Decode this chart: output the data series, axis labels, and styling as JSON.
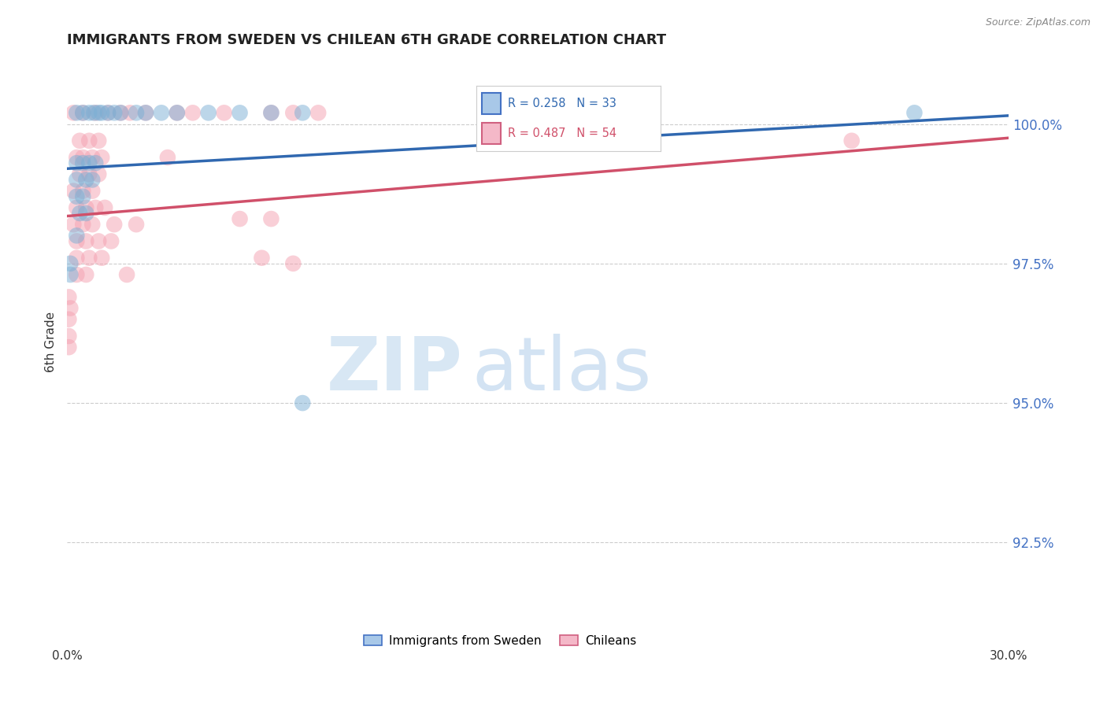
{
  "title": "IMMIGRANTS FROM SWEDEN VS CHILEAN 6TH GRADE CORRELATION CHART",
  "source": "Source: ZipAtlas.com",
  "ylabel": "6th Grade",
  "y_ticks": [
    92.5,
    95.0,
    97.5,
    100.0
  ],
  "y_tick_labels": [
    "92.5%",
    "95.0%",
    "97.5%",
    "100.0%"
  ],
  "xmin": 0.0,
  "xmax": 30.0,
  "ymin": 91.0,
  "ymax": 101.2,
  "legend_blue_label": "Immigrants from Sweden",
  "legend_pink_label": "Chileans",
  "blue_color": "#7bafd4",
  "pink_color": "#f4a0b0",
  "blue_line_color": "#3068b0",
  "pink_line_color": "#d0506a",
  "blue_scatter": [
    [
      0.3,
      100.2
    ],
    [
      0.5,
      100.2
    ],
    [
      0.7,
      100.2
    ],
    [
      0.85,
      100.2
    ],
    [
      1.0,
      100.2
    ],
    [
      1.1,
      100.2
    ],
    [
      1.3,
      100.2
    ],
    [
      1.5,
      100.2
    ],
    [
      1.7,
      100.2
    ],
    [
      2.2,
      100.2
    ],
    [
      2.5,
      100.2
    ],
    [
      3.0,
      100.2
    ],
    [
      3.5,
      100.2
    ],
    [
      4.5,
      100.2
    ],
    [
      5.5,
      100.2
    ],
    [
      6.5,
      100.2
    ],
    [
      7.5,
      100.2
    ],
    [
      0.3,
      99.3
    ],
    [
      0.5,
      99.3
    ],
    [
      0.7,
      99.3
    ],
    [
      0.9,
      99.3
    ],
    [
      0.3,
      99.0
    ],
    [
      0.6,
      99.0
    ],
    [
      0.8,
      99.0
    ],
    [
      0.3,
      98.7
    ],
    [
      0.5,
      98.7
    ],
    [
      0.4,
      98.4
    ],
    [
      0.6,
      98.4
    ],
    [
      0.3,
      98.0
    ],
    [
      0.1,
      97.5
    ],
    [
      0.1,
      97.3
    ],
    [
      7.5,
      95.0
    ],
    [
      27.0,
      100.2
    ]
  ],
  "pink_scatter": [
    [
      0.2,
      100.2
    ],
    [
      0.5,
      100.2
    ],
    [
      0.9,
      100.2
    ],
    [
      1.3,
      100.2
    ],
    [
      1.7,
      100.2
    ],
    [
      2.0,
      100.2
    ],
    [
      2.5,
      100.2
    ],
    [
      3.5,
      100.2
    ],
    [
      5.0,
      100.2
    ],
    [
      6.5,
      100.2
    ],
    [
      7.2,
      100.2
    ],
    [
      8.0,
      100.2
    ],
    [
      0.4,
      99.7
    ],
    [
      0.7,
      99.7
    ],
    [
      1.0,
      99.7
    ],
    [
      0.3,
      99.4
    ],
    [
      0.5,
      99.4
    ],
    [
      0.8,
      99.4
    ],
    [
      1.1,
      99.4
    ],
    [
      0.4,
      99.1
    ],
    [
      0.7,
      99.1
    ],
    [
      1.0,
      99.1
    ],
    [
      0.2,
      98.8
    ],
    [
      0.5,
      98.8
    ],
    [
      0.8,
      98.8
    ],
    [
      0.3,
      98.5
    ],
    [
      0.6,
      98.5
    ],
    [
      0.9,
      98.5
    ],
    [
      1.2,
      98.5
    ],
    [
      0.2,
      98.2
    ],
    [
      0.5,
      98.2
    ],
    [
      0.8,
      98.2
    ],
    [
      1.5,
      98.2
    ],
    [
      2.2,
      98.2
    ],
    [
      0.3,
      97.9
    ],
    [
      0.6,
      97.9
    ],
    [
      1.0,
      97.9
    ],
    [
      1.4,
      97.9
    ],
    [
      0.3,
      97.6
    ],
    [
      0.7,
      97.6
    ],
    [
      1.1,
      97.6
    ],
    [
      0.3,
      97.3
    ],
    [
      0.6,
      97.3
    ],
    [
      1.9,
      97.3
    ],
    [
      3.2,
      99.4
    ],
    [
      6.2,
      97.6
    ],
    [
      7.2,
      97.5
    ],
    [
      5.5,
      98.3
    ],
    [
      6.5,
      98.3
    ],
    [
      0.05,
      96.9
    ],
    [
      0.1,
      96.7
    ],
    [
      0.05,
      96.5
    ],
    [
      0.05,
      96.2
    ],
    [
      0.05,
      96.0
    ],
    [
      25.0,
      99.7
    ],
    [
      4.0,
      100.2
    ]
  ],
  "blue_trendline": [
    [
      0.0,
      99.2
    ],
    [
      30.0,
      100.15
    ]
  ],
  "pink_trendline": [
    [
      0.0,
      98.35
    ],
    [
      30.0,
      99.75
    ]
  ],
  "watermark_zip": "ZIP",
  "watermark_atlas": "atlas",
  "background_color": "#ffffff",
  "grid_color": "#cccccc",
  "title_color": "#222222",
  "right_tick_color": "#4472c4"
}
